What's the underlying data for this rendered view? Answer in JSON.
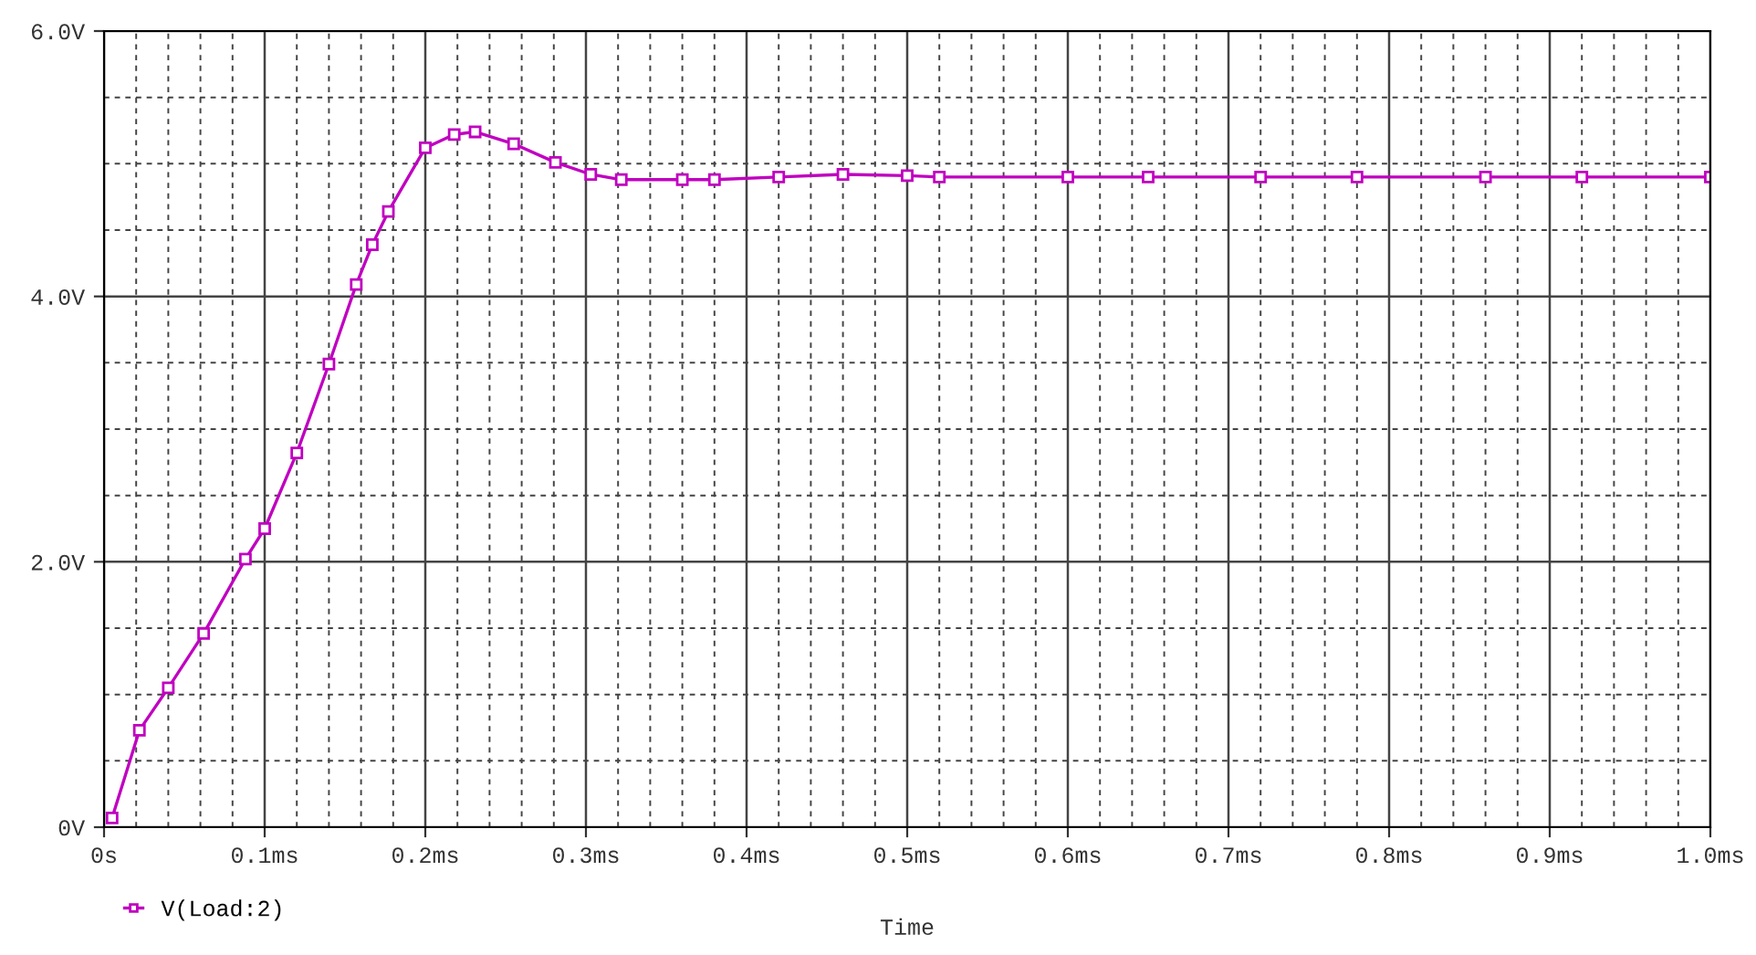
{
  "chart_data": {
    "type": "line",
    "xlabel": "Time",
    "x": [
      0.005,
      0.022,
      0.04,
      0.062,
      0.088,
      0.1,
      0.12,
      0.14,
      0.157,
      0.167,
      0.177,
      0.2,
      0.218,
      0.231,
      0.255,
      0.281,
      0.303,
      0.322,
      0.36,
      0.38,
      0.42,
      0.46,
      0.5,
      0.52,
      0.6,
      0.65,
      0.72,
      0.78,
      0.86,
      0.92,
      1.0
    ],
    "series": [
      {
        "name": "V(Load:2)",
        "color": "#c000c0",
        "values": [
          0.07,
          0.73,
          1.05,
          1.46,
          2.02,
          2.25,
          2.82,
          3.49,
          4.09,
          4.39,
          4.64,
          5.12,
          5.22,
          5.24,
          5.15,
          5.01,
          4.92,
          4.88,
          4.88,
          4.88,
          4.9,
          4.92,
          4.91,
          4.9,
          4.9,
          4.9,
          4.9,
          4.9,
          4.9,
          4.9,
          4.9
        ]
      }
    ],
    "xlim": [
      0,
      1.0
    ],
    "ylim": [
      0,
      6.0
    ],
    "xticks": [
      {
        "value": 0,
        "label": "0s"
      },
      {
        "value": 0.1,
        "label": "0.1ms"
      },
      {
        "value": 0.2,
        "label": "0.2ms"
      },
      {
        "value": 0.3,
        "label": "0.3ms"
      },
      {
        "value": 0.4,
        "label": "0.4ms"
      },
      {
        "value": 0.5,
        "label": "0.5ms"
      },
      {
        "value": 0.6,
        "label": "0.6ms"
      },
      {
        "value": 0.7,
        "label": "0.7ms"
      },
      {
        "value": 0.8,
        "label": "0.8ms"
      },
      {
        "value": 0.9,
        "label": "0.9ms"
      },
      {
        "value": 1.0,
        "label": "1.0ms"
      }
    ],
    "yticks": [
      {
        "value": 0,
        "label": "0V"
      },
      {
        "value": 2.0,
        "label": "2.0V"
      },
      {
        "value": 4.0,
        "label": "4.0V"
      },
      {
        "value": 6.0,
        "label": "6.0V"
      }
    ],
    "grid": true,
    "legend": "bottom left",
    "marker": "square",
    "line_style": "solid"
  }
}
